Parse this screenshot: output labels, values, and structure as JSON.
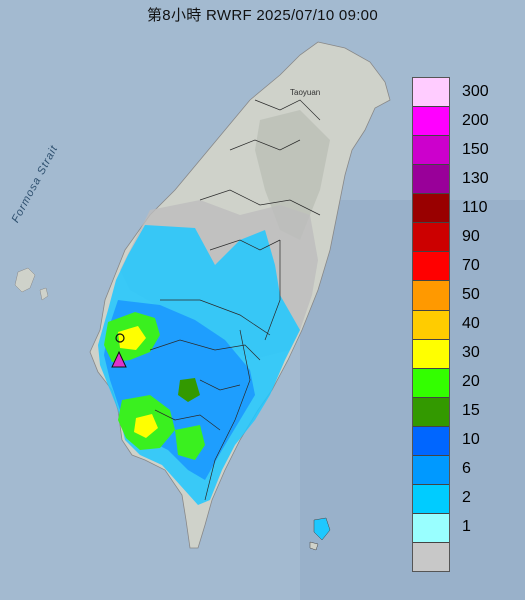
{
  "title": "第8小時  RWRF 2025/07/10 09:00",
  "labels": {
    "strait": "Formosa Strait",
    "city": "Taoyuan"
  },
  "legend": {
    "items": [
      {
        "value": "300",
        "color": "#ffccff"
      },
      {
        "value": "200",
        "color": "#ff00ff"
      },
      {
        "value": "150",
        "color": "#cc00cc"
      },
      {
        "value": "130",
        "color": "#990099"
      },
      {
        "value": "110",
        "color": "#990000"
      },
      {
        "value": "90",
        "color": "#cc0000"
      },
      {
        "value": "70",
        "color": "#ff0000"
      },
      {
        "value": "50",
        "color": "#ff9900"
      },
      {
        "value": "40",
        "color": "#ffcc00"
      },
      {
        "value": "30",
        "color": "#ffff00"
      },
      {
        "value": "20",
        "color": "#33ff00"
      },
      {
        "value": "15",
        "color": "#339900"
      },
      {
        "value": "10",
        "color": "#0066ff"
      },
      {
        "value": "6",
        "color": "#0099ff"
      },
      {
        "value": "2",
        "color": "#00ccff"
      },
      {
        "value": "1",
        "color": "#99ffff"
      },
      {
        "value": "",
        "color": "#c8c8c8"
      }
    ]
  },
  "colors": {
    "sea": "#9fb6cc",
    "land": "#c9ccc4",
    "marker": "#dd33cc"
  }
}
